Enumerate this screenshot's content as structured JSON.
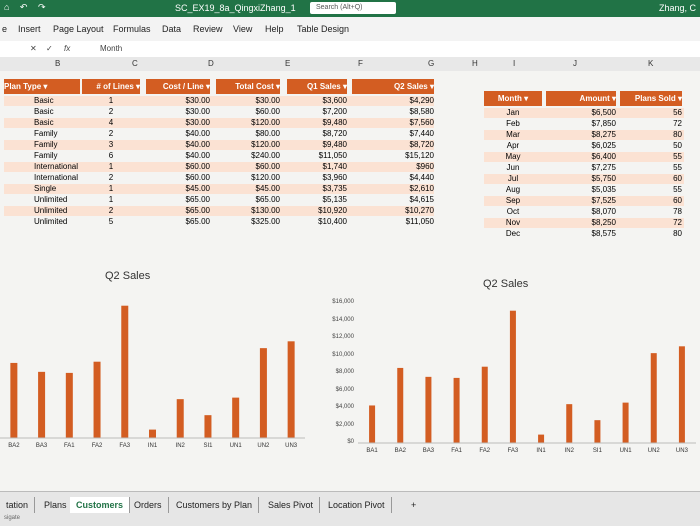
{
  "titlebar": {
    "quick_access": "⌂ ↶ ↷",
    "document": "SC_EX19_8a_QingxiZhang_1",
    "search": "Search (Alt+Q)",
    "user": "Zhang, C"
  },
  "ribbon": {
    "tabs": [
      "e",
      "Insert",
      "Page Layout",
      "Formulas",
      "Data",
      "Review",
      "View",
      "Help",
      "Table Design"
    ]
  },
  "formula_bar": {
    "fx": "fx",
    "value": "Month"
  },
  "columns": [
    "B",
    "C",
    "D",
    "E",
    "F",
    "G",
    "H",
    "I",
    "J",
    "K"
  ],
  "table1": {
    "headers": [
      "Plan Type",
      "# of Lines",
      "Cost / Line",
      "Total Cost",
      "Q1 Sales",
      "Q2 Sales"
    ],
    "rows": [
      [
        "Basic",
        "1",
        "$30.00",
        "$30.00",
        "$3,600",
        "$4,290"
      ],
      [
        "Basic",
        "2",
        "$30.00",
        "$60.00",
        "$7,200",
        "$8,580"
      ],
      [
        "Basic",
        "4",
        "$30.00",
        "$120.00",
        "$9,480",
        "$7,560"
      ],
      [
        "Family",
        "2",
        "$40.00",
        "$80.00",
        "$8,720",
        "$7,440"
      ],
      [
        "Family",
        "3",
        "$40.00",
        "$120.00",
        "$9,480",
        "$8,720"
      ],
      [
        "Family",
        "6",
        "$40.00",
        "$240.00",
        "$11,050",
        "$15,120"
      ],
      [
        "International",
        "1",
        "$60.00",
        "$60.00",
        "$1,740",
        "$960"
      ],
      [
        "International",
        "2",
        "$60.00",
        "$120.00",
        "$3,960",
        "$4,440"
      ],
      [
        "Single",
        "1",
        "$45.00",
        "$45.00",
        "$3,735",
        "$2,610"
      ],
      [
        "Unlimited",
        "1",
        "$65.00",
        "$65.00",
        "$5,135",
        "$4,615"
      ],
      [
        "Unlimited",
        "2",
        "$65.00",
        "$130.00",
        "$10,920",
        "$10,270"
      ],
      [
        "Unlimited",
        "5",
        "$65.00",
        "$325.00",
        "$10,400",
        "$11,050"
      ]
    ]
  },
  "table2": {
    "headers": [
      "Month",
      "Amount",
      "Plans Sold"
    ],
    "rows": [
      [
        "Jan",
        "$6,500",
        "56"
      ],
      [
        "Feb",
        "$7,850",
        "72"
      ],
      [
        "Mar",
        "$8,275",
        "80"
      ],
      [
        "Apr",
        "$6,025",
        "50"
      ],
      [
        "May",
        "$6,400",
        "55"
      ],
      [
        "Jun",
        "$7,275",
        "55"
      ],
      [
        "Jul",
        "$5,750",
        "60"
      ],
      [
        "Aug",
        "$5,035",
        "55"
      ],
      [
        "Sep",
        "$7,525",
        "60"
      ],
      [
        "Oct",
        "$8,070",
        "78"
      ],
      [
        "Nov",
        "$8,250",
        "72"
      ],
      [
        "Dec",
        "$8,575",
        "80"
      ]
    ]
  },
  "chart_data": [
    {
      "type": "bar",
      "title": "Q2 Sales",
      "categories": [
        "BA2",
        "BA3",
        "FA1",
        "FA2",
        "FA3",
        "IN1",
        "IN2",
        "SI1",
        "UN1",
        "UN2",
        "UN3"
      ],
      "values": [
        8580,
        7560,
        7440,
        8720,
        15120,
        960,
        4440,
        2610,
        4615,
        10270,
        11050
      ],
      "color": "#d35d22"
    },
    {
      "type": "bar",
      "title": "Q2 Sales",
      "categories": [
        "BA1",
        "BA2",
        "BA3",
        "FA1",
        "FA2",
        "FA3",
        "IN1",
        "IN2",
        "SI1",
        "UN1",
        "UN2",
        "UN3"
      ],
      "values": [
        4290,
        8580,
        7560,
        7440,
        8720,
        15120,
        960,
        4440,
        2610,
        4615,
        10270,
        11050
      ],
      "yticks": [
        "$16,000",
        "$14,000",
        "$12,000",
        "$10,000",
        "$8,000",
        "$6,000",
        "$4,000",
        "$2,000",
        "$0"
      ],
      "ylim": [
        0,
        16000
      ],
      "color": "#d35d22"
    }
  ],
  "sheet_tabs": [
    "tation",
    "Plans",
    "Customers",
    "Orders",
    "Customers by Plan",
    "Sales Pivot",
    "Location Pivot",
    "+"
  ],
  "status": "sigate"
}
